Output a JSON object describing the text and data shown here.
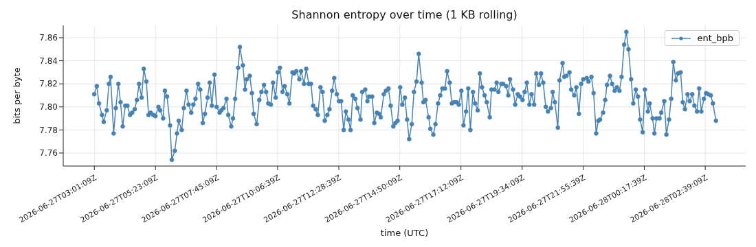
{
  "chart_data": {
    "type": "line",
    "title": "Shannon entropy over time (1 KB rolling)",
    "xlabel": "time (UTC)",
    "ylabel": "bits per byte",
    "x": [
      "2026-06-27T03:01",
      "2026-06-27T03:07",
      "2026-06-27T03:12",
      "2026-06-27T03:19",
      "2026-06-27T03:23",
      "2026-06-27T03:30",
      "2026-06-27T03:35",
      "2026-06-27T03:39",
      "2026-06-27T03:46",
      "2026-06-27T03:51",
      "2026-06-27T03:57",
      "2026-06-27T04:02",
      "2026-06-27T04:07",
      "2026-06-27T04:13",
      "2026-06-27T04:18",
      "2026-06-27T04:24",
      "2026-06-27T04:29",
      "2026-06-27T04:35",
      "2026-06-27T04:40",
      "2026-06-27T04:45",
      "2026-06-27T04:51",
      "2026-06-27T04:56",
      "2026-06-27T05:02",
      "2026-06-27T05:07",
      "2026-06-27T05:12",
      "2026-06-27T05:18",
      "2026-06-27T05:23",
      "2026-06-27T05:30",
      "2026-06-27T05:34",
      "2026-06-27T05:41",
      "2026-06-27T05:45",
      "2026-06-27T05:50",
      "2026-06-27T05:57",
      "2026-06-27T06:01",
      "2026-06-27T06:08",
      "2026-06-27T06:13",
      "2026-06-27T06:17",
      "2026-06-27T06:24",
      "2026-06-27T06:29",
      "2026-06-27T06:35",
      "2026-06-27T06:40",
      "2026-06-27T06:46",
      "2026-06-27T06:51",
      "2026-06-27T06:56",
      "2026-06-27T07:02",
      "2026-06-27T07:07",
      "2026-06-27T07:13",
      "2026-06-27T07:18",
      "2026-06-27T07:24",
      "2026-06-27T07:29",
      "2026-06-27T07:34",
      "2026-06-27T07:40",
      "2026-06-27T07:45",
      "2026-06-27T07:52",
      "2026-06-27T07:56",
      "2026-06-27T08:01",
      "2026-06-27T08:08",
      "2026-06-27T08:12",
      "2026-06-27T08:19",
      "2026-06-27T08:23",
      "2026-06-27T08:28",
      "2026-06-27T08:35",
      "2026-06-27T08:39",
      "2026-06-27T08:46",
      "2026-06-27T08:51",
      "2026-06-27T08:55",
      "2026-06-27T09:02",
      "2026-06-27T09:07",
      "2026-06-27T09:11",
      "2026-06-27T09:18",
      "2026-06-27T09:24",
      "2026-06-27T09:29",
      "2026-06-27T09:35",
      "2026-06-27T09:40",
      "2026-06-27T09:45",
      "2026-06-27T09:51",
      "2026-06-27T09:56",
      "2026-06-27T10:02",
      "2026-06-27T10:07",
      "2026-06-27T10:12",
      "2026-06-27T10:18",
      "2026-06-27T10:23",
      "2026-06-27T10:29",
      "2026-06-27T10:34",
      "2026-06-27T10:41",
      "2026-06-27T10:45",
      "2026-06-27T10:50",
      "2026-06-27T10:57",
      "2026-06-27T11:01",
      "2026-06-27T11:08",
      "2026-06-27T11:13",
      "2026-06-27T11:19",
      "2026-06-27T11:24",
      "2026-06-27T11:29",
      "2026-06-27T11:35",
      "2026-06-27T11:40",
      "2026-06-27T11:46",
      "2026-06-27T11:51",
      "2026-06-27T11:56",
      "2026-06-27T12:02",
      "2026-06-27T12:07",
      "2026-06-27T12:13",
      "2026-06-27T12:18",
      "2026-06-27T12:24",
      "2026-06-27T12:29",
      "2026-06-27T12:34",
      "2026-06-27T12:40",
      "2026-06-27T12:45",
      "2026-06-27T12:51",
      "2026-06-27T12:56",
      "2026-06-27T13:01",
      "2026-06-27T13:07",
      "2026-06-27T13:12",
      "2026-06-27T13:19",
      "2026-06-27T13:23",
      "2026-06-27T13:30",
      "2026-06-27T13:35",
      "2026-06-27T13:39",
      "2026-06-27T13:46",
      "2026-06-27T13:51",
      "2026-06-27T13:57",
      "2026-06-27T14:02",
      "2026-06-27T14:06",
      "2026-06-27T14:13",
      "2026-06-27T14:18",
      "2026-06-27T14:24",
      "2026-06-27T14:29",
      "2026-06-27T14:35",
      "2026-06-27T14:40",
      "2026-06-27T14:45",
      "2026-06-27T14:51",
      "2026-06-27T14:56",
      "2026-06-27T15:02",
      "2026-06-27T15:07",
      "2026-06-27T15:12",
      "2026-06-27T15:18",
      "2026-06-27T15:23",
      "2026-06-27T15:29",
      "2026-06-27T15:34",
      "2026-06-27T15:41",
      "2026-06-27T15:45",
      "2026-06-27T15:50",
      "2026-06-27T15:57",
      "2026-06-27T16:01",
      "2026-06-27T16:08",
      "2026-06-27T16:13",
      "2026-06-27T16:19",
      "2026-06-27T16:24",
      "2026-06-27T16:29",
      "2026-06-27T16:35",
      "2026-06-27T16:40",
      "2026-06-27T16:46",
      "2026-06-27T16:51",
      "2026-06-27T16:56",
      "2026-06-27T17:02",
      "2026-06-27T17:07",
      "2026-06-27T17:13",
      "2026-06-27T17:18",
      "2026-06-27T17:24",
      "2026-06-27T17:29",
      "2026-06-27T17:34",
      "2026-06-27T17:40",
      "2026-06-27T17:45",
      "2026-06-27T17:51",
      "2026-06-27T17:56",
      "2026-06-27T18:01",
      "2026-06-27T18:07",
      "2026-06-27T18:12",
      "2026-06-27T18:19",
      "2026-06-27T18:23",
      "2026-06-27T18:30",
      "2026-06-27T18:35",
      "2026-06-27T18:39",
      "2026-06-27T18:46",
      "2026-06-27T18:50",
      "2026-06-27T18:57",
      "2026-06-27T19:02",
      "2026-06-27T19:06",
      "2026-06-27T19:13",
      "2026-06-27T19:18",
      "2026-06-27T19:24",
      "2026-06-27T19:29",
      "2026-06-27T19:35",
      "2026-06-27T19:40",
      "2026-06-27T19:45",
      "2026-06-27T19:51",
      "2026-06-27T19:56",
      "2026-06-27T20:02",
      "2026-06-27T20:07",
      "2026-06-27T20:13",
      "2026-06-27T20:18",
      "2026-06-27T20:23",
      "2026-06-27T20:29",
      "2026-06-27T20:34",
      "2026-06-27T20:41",
      "2026-06-27T20:45",
      "2026-06-27T20:50",
      "2026-06-27T20:57",
      "2026-06-27T21:01",
      "2026-06-27T21:08",
      "2026-06-27T21:12",
      "2026-06-27T21:17",
      "2026-06-27T21:24",
      "2026-06-27T21:28",
      "2026-06-27T21:35",
      "2026-06-27T21:40",
      "2026-06-27T21:46",
      "2026-06-27T21:51",
      "2026-06-27T21:56",
      "2026-06-27T22:04",
      "2026-06-27T22:08",
      "2026-06-27T22:15",
      "2026-06-27T22:20",
      "2026-06-27T22:26",
      "2026-06-27T22:31",
      "2026-06-27T22:35",
      "2026-06-27T22:42",
      "2026-06-27T22:47",
      "2026-06-27T22:51",
      "2026-06-27T22:58",
      "2026-06-27T23:03",
      "2026-06-27T23:09",
      "2026-06-27T23:14",
      "2026-06-27T23:20",
      "2026-06-27T23:25",
      "2026-06-27T23:31",
      "2026-06-27T23:36",
      "2026-06-27T23:41",
      "2026-06-27T23:47",
      "2026-06-27T23:52",
      "2026-06-27T23:58",
      "2026-06-28T00:03",
      "2026-06-28T00:08",
      "2026-06-28T00:14",
      "2026-06-28T00:19",
      "2026-06-28T00:26",
      "2026-06-28T00:30",
      "2026-06-28T00:37",
      "2026-06-28T00:41",
      "2026-06-28T00:46",
      "2026-06-28T00:53",
      "2026-06-28T00:57",
      "2026-06-28T01:04",
      "2026-06-28T01:09",
      "2026-06-28T01:15",
      "2026-06-28T01:20",
      "2026-06-28T01:25",
      "2026-06-28T01:31",
      "2026-06-28T01:36",
      "2026-06-28T01:42",
      "2026-06-28T01:47",
      "2026-06-28T01:52",
      "2026-06-28T01:58",
      "2026-06-28T02:03",
      "2026-06-28T02:09",
      "2026-06-28T02:14",
      "2026-06-28T02:20",
      "2026-06-28T02:25",
      "2026-06-28T02:30",
      "2026-06-28T02:36",
      "2026-06-28T02:41",
      "2026-06-28T02:46",
      "2026-06-28T02:52",
      "2026-06-28T02:57",
      "2026-06-28T03:04"
    ],
    "series": [
      {
        "name": "ent_bpb",
        "color": "#4682b4",
        "values": [
          7.811,
          7.818,
          7.803,
          7.793,
          7.787,
          7.797,
          7.82,
          7.826,
          7.777,
          7.799,
          7.82,
          7.804,
          7.783,
          7.801,
          7.801,
          7.793,
          7.795,
          7.798,
          7.806,
          7.82,
          7.808,
          7.833,
          7.822,
          7.793,
          7.795,
          7.793,
          7.792,
          7.8,
          7.797,
          7.79,
          7.814,
          7.809,
          7.784,
          7.754,
          7.762,
          7.777,
          7.788,
          7.78,
          7.799,
          7.814,
          7.802,
          7.795,
          7.802,
          7.807,
          7.82,
          7.815,
          7.786,
          7.794,
          7.808,
          7.821,
          7.801,
          7.828,
          7.8,
          7.795,
          7.797,
          7.799,
          7.807,
          7.793,
          7.783,
          7.79,
          7.807,
          7.834,
          7.852,
          7.836,
          7.815,
          7.824,
          7.827,
          7.812,
          7.794,
          7.785,
          7.806,
          7.813,
          7.819,
          7.813,
          7.803,
          7.802,
          7.821,
          7.808,
          7.83,
          7.834,
          7.813,
          7.818,
          7.811,
          7.803,
          7.83,
          7.829,
          7.831,
          7.824,
          7.831,
          7.82,
          7.833,
          7.82,
          7.82,
          7.801,
          7.798,
          7.793,
          7.817,
          7.813,
          7.788,
          7.793,
          7.798,
          7.814,
          7.825,
          7.811,
          7.805,
          7.805,
          7.78,
          7.796,
          7.789,
          7.78,
          7.81,
          7.807,
          7.799,
          7.789,
          7.813,
          7.815,
          7.805,
          7.809,
          7.809,
          7.786,
          7.795,
          7.794,
          7.791,
          7.811,
          7.814,
          7.816,
          7.801,
          7.783,
          7.786,
          7.788,
          7.817,
          7.802,
          7.808,
          7.789,
          7.772,
          7.785,
          7.813,
          7.822,
          7.846,
          7.821,
          7.804,
          7.806,
          7.791,
          7.781,
          7.776,
          7.785,
          7.803,
          7.81,
          7.816,
          7.816,
          7.831,
          7.821,
          7.803,
          7.804,
          7.804,
          7.802,
          7.814,
          7.784,
          7.796,
          7.816,
          7.78,
          7.813,
          7.803,
          7.797,
          7.829,
          7.817,
          7.81,
          7.804,
          7.791,
          7.815,
          7.815,
          7.821,
          7.813,
          7.82,
          7.82,
          7.818,
          7.81,
          7.824,
          7.815,
          7.802,
          7.811,
          7.809,
          7.806,
          7.813,
          7.821,
          7.802,
          7.811,
          7.802,
          7.829,
          7.819,
          7.829,
          7.821,
          7.8,
          7.796,
          7.799,
          7.813,
          7.804,
          7.782,
          7.823,
          7.838,
          7.826,
          7.827,
          7.83,
          7.815,
          7.81,
          7.817,
          7.794,
          7.82,
          7.824,
          7.825,
          7.822,
          7.826,
          7.812,
          7.777,
          7.788,
          7.789,
          7.795,
          7.806,
          7.819,
          7.827,
          7.82,
          7.814,
          7.817,
          7.814,
          7.826,
          7.854,
          7.865,
          7.85,
          7.824,
          7.803,
          7.815,
          7.809,
          7.789,
          7.778,
          7.815,
          7.796,
          7.803,
          7.79,
          7.777,
          7.79,
          7.79,
          7.795,
          7.805,
          7.776,
          7.789,
          7.807,
          7.839,
          7.823,
          7.829,
          7.83,
          7.804,
          7.798,
          7.811,
          7.805,
          7.811,
          7.801,
          7.796,
          7.816,
          7.796,
          7.807,
          7.812,
          7.811,
          7.81,
          7.803,
          7.788
        ]
      }
    ],
    "xlim": [
      "2026-06-27T01:49",
      "2026-06-28T04:13"
    ],
    "xticks": [
      "2026-06-27T03:01:09Z",
      "2026-06-27T05:23:09Z",
      "2026-06-27T07:45:09Z",
      "2026-06-27T10:06:39Z",
      "2026-06-27T12:28:39Z",
      "2026-06-27T14:50:09Z",
      "2026-06-27T17:12:09Z",
      "2026-06-27T19:34:09Z",
      "2026-06-27T21:55:39Z",
      "2026-06-28T00:17:39Z",
      "2026-06-28T02:39:09Z"
    ],
    "ylim": [
      7.7487,
      7.8707
    ],
    "yticks": [
      7.76,
      7.78,
      {
        "value": 7.8,
        "label": "7.80"
      },
      7.82,
      7.84,
      7.86
    ],
    "grid": true,
    "legend": "top right",
    "marker": "circle",
    "line_style": "solid"
  }
}
